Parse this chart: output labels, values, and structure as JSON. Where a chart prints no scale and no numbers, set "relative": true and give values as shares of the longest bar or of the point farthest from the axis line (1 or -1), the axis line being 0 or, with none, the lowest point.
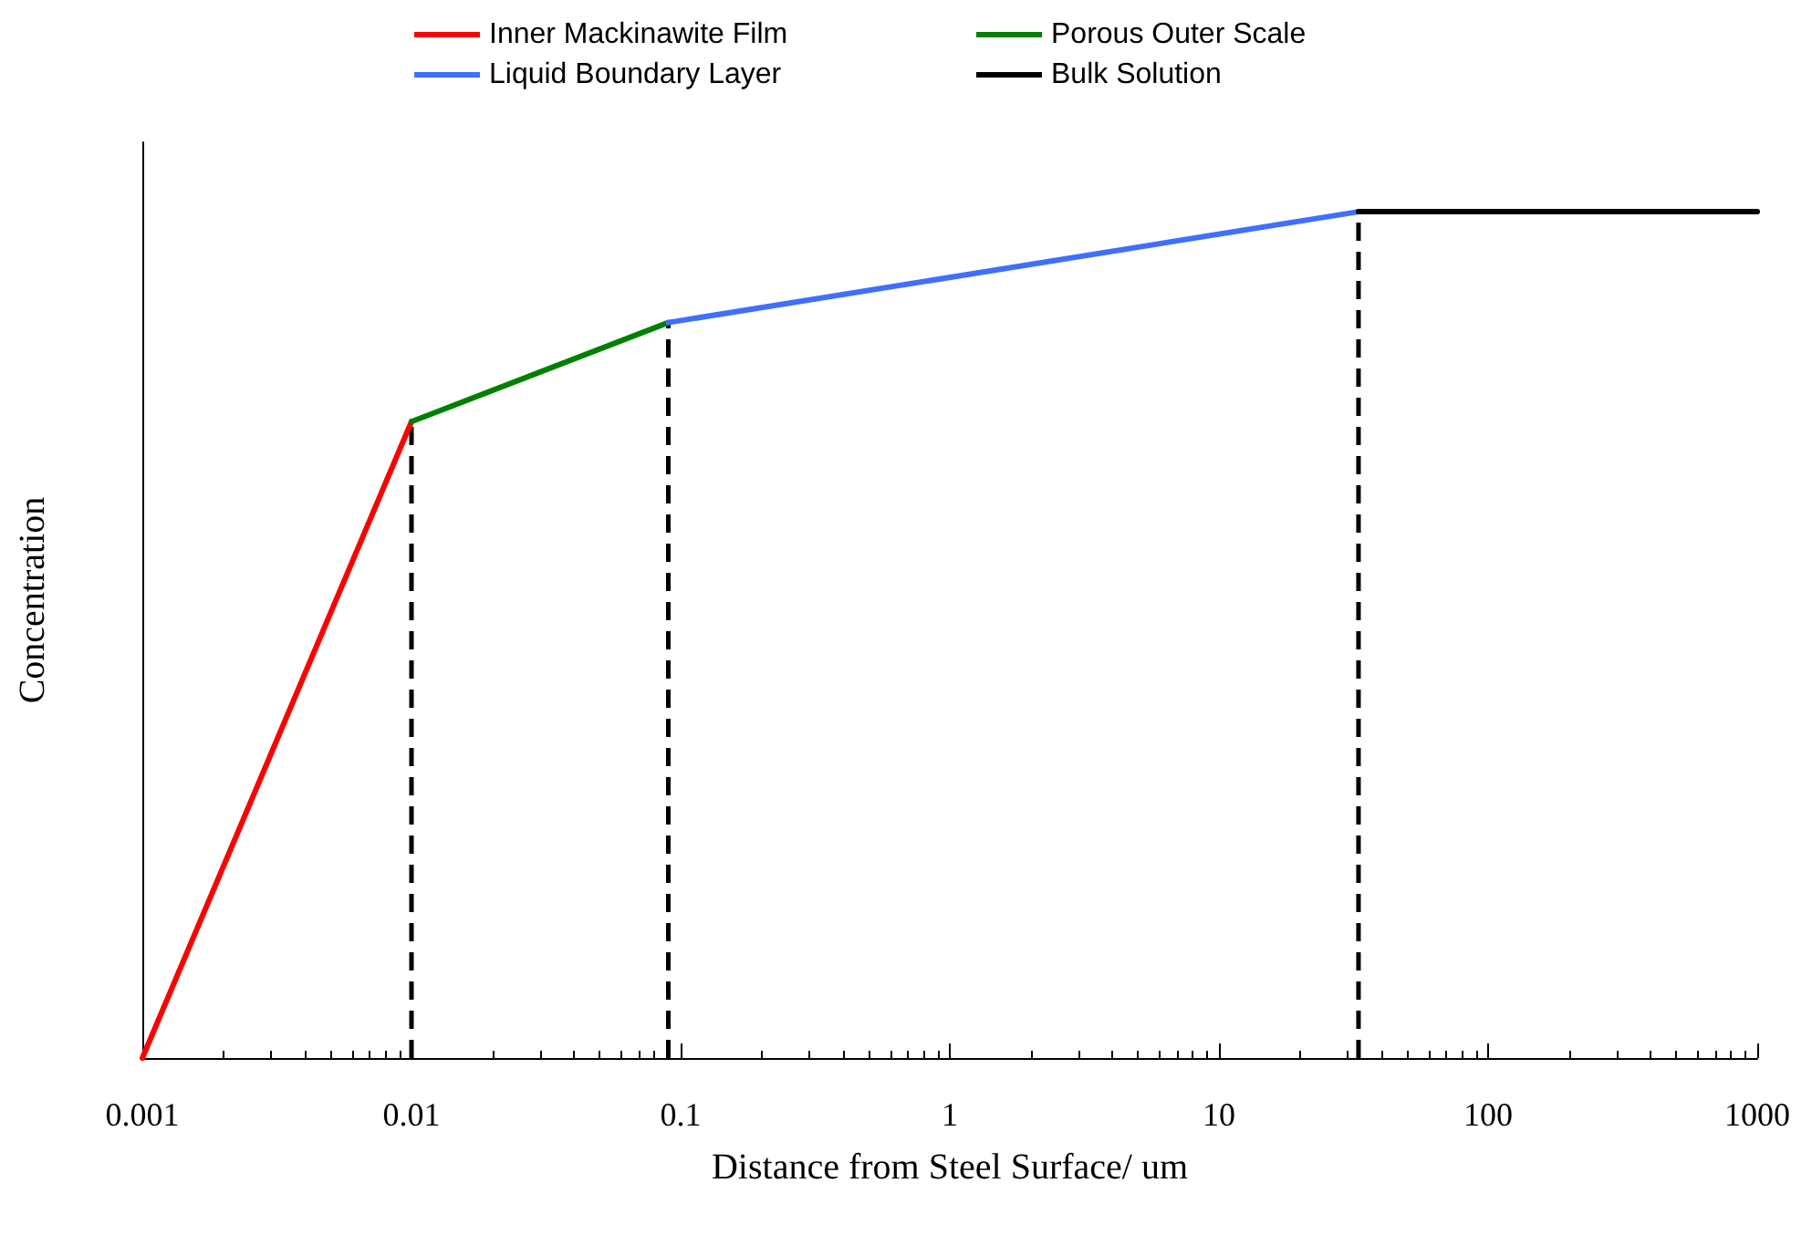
{
  "chart_data": {
    "type": "line",
    "xlabel": "Distance from Steel Surface/ um",
    "ylabel": "Concentration",
    "relative": true,
    "log": "x",
    "xlim": [
      0.001,
      1000
    ],
    "xticks": [
      {
        "value": 0.001,
        "label": "0.001"
      },
      {
        "value": 0.01,
        "label": "0.01"
      },
      {
        "value": 0.1,
        "label": "0.1"
      },
      1,
      10,
      100,
      1000
    ],
    "series": [
      {
        "name": "Inner Mackinawite Film",
        "color": "#ff0000",
        "x": [
          0.001,
          0.01
        ],
        "values": [
          0,
          0.752
        ]
      },
      {
        "name": "Porous Outer Scale",
        "color": "#008000",
        "x": [
          0.01,
          0.09
        ],
        "values": [
          0.752,
          0.869
        ]
      },
      {
        "name": "Liquid Boundary Layer",
        "color": "#3f6fff",
        "x": [
          0.09,
          33
        ],
        "values": [
          0.869,
          1
        ]
      },
      {
        "name": "Bulk Solution",
        "color": "#000000",
        "x": [
          33,
          1000
        ],
        "values": [
          1,
          1
        ]
      }
    ],
    "ref_lines": [
      {
        "axis": "x",
        "value": 0.01,
        "color": "#000000",
        "line_style": "dashed"
      },
      {
        "axis": "x",
        "value": 0.09,
        "color": "#000000",
        "line_style": "dashed"
      },
      {
        "axis": "x",
        "value": 33,
        "color": "#000000",
        "line_style": "dashed"
      }
    ],
    "legend": "top",
    "grid": false,
    "marker": "none",
    "line_style": "solid"
  }
}
